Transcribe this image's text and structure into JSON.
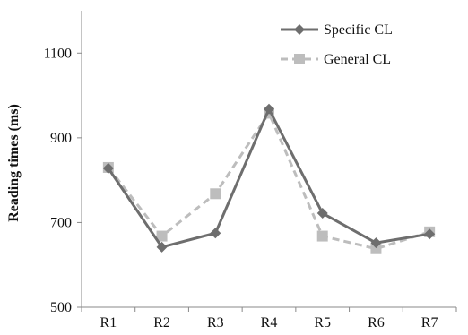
{
  "chart_data": {
    "type": "line",
    "title": "",
    "xlabel": "",
    "ylabel": "Reading times (ms)",
    "categories": [
      "R1",
      "R2",
      "R3",
      "R4",
      "R5",
      "R6",
      "R7"
    ],
    "ylim": [
      500,
      1200
    ],
    "yticks": [
      "500",
      "700",
      "900",
      "1100"
    ],
    "grid": false,
    "legend_position": "top-right",
    "series": [
      {
        "name": "Specific CL",
        "values": [
          828,
          642,
          675,
          968,
          722,
          652,
          673
        ],
        "color": "#6e6e6e",
        "line_style": "solid",
        "marker": "diamond"
      },
      {
        "name": "General CL",
        "values": [
          830,
          668,
          768,
          958,
          668,
          638,
          678
        ],
        "color": "#bdbdbd",
        "line_style": "dashed",
        "marker": "square"
      }
    ]
  }
}
